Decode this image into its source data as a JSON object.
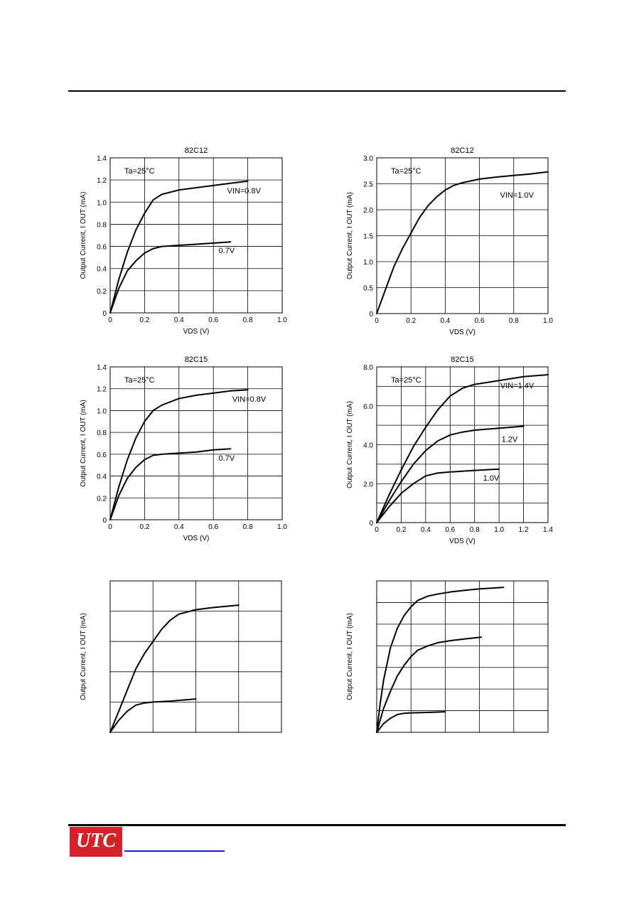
{
  "chart_data": [
    {
      "type": "line",
      "title": "82C12",
      "annotation": "Ta=25°C",
      "xlabel": "VDS (V)",
      "ylabel": "Output Current, I OUT (mA)",
      "xlim": [
        0,
        1.0
      ],
      "ylim": [
        0,
        1.4
      ],
      "xticks": [
        "0",
        "0.2",
        "0.4",
        "0.6",
        "0.8",
        "1.0"
      ],
      "yticks": [
        "0",
        "0.2",
        "0.4",
        "0.6",
        "0.8",
        "1.0",
        "1.2",
        "1.4"
      ],
      "grid": true,
      "series": [
        {
          "label": "VIN=0.8V",
          "x": [
            0,
            0.05,
            0.1,
            0.15,
            0.2,
            0.25,
            0.3,
            0.4,
            0.5,
            0.6,
            0.7,
            0.8
          ],
          "y": [
            0,
            0.3,
            0.55,
            0.75,
            0.9,
            1.02,
            1.07,
            1.11,
            1.13,
            1.15,
            1.17,
            1.19
          ]
        },
        {
          "label": "0.7V",
          "x": [
            0,
            0.05,
            0.1,
            0.15,
            0.2,
            0.25,
            0.3,
            0.4,
            0.5,
            0.6,
            0.7
          ],
          "y": [
            0,
            0.22,
            0.38,
            0.47,
            0.54,
            0.58,
            0.6,
            0.61,
            0.62,
            0.63,
            0.64
          ]
        }
      ]
    },
    {
      "type": "line",
      "title": "82C12",
      "annotation": "Ta=25°C",
      "xlabel": "VDS (V)",
      "ylabel": "Output Current, I OUT (mA)",
      "xlim": [
        0,
        1.0
      ],
      "ylim": [
        0,
        3.0
      ],
      "xticks": [
        "0",
        "0.2",
        "0.4",
        "0.6",
        "0.8",
        "1.0"
      ],
      "yticks": [
        "0",
        "0.5",
        "1.0",
        "1.5",
        "2.0",
        "2.5",
        "3.0"
      ],
      "grid": true,
      "series": [
        {
          "label": "VIN=1.0V",
          "x": [
            0,
            0.05,
            0.1,
            0.15,
            0.2,
            0.25,
            0.3,
            0.35,
            0.4,
            0.45,
            0.5,
            0.6,
            0.7,
            0.8,
            0.9,
            1.0
          ],
          "y": [
            0,
            0.45,
            0.9,
            1.25,
            1.55,
            1.85,
            2.08,
            2.25,
            2.38,
            2.47,
            2.52,
            2.59,
            2.63,
            2.66,
            2.69,
            2.73
          ]
        }
      ]
    },
    {
      "type": "line",
      "title": "82C15",
      "annotation": "Ta=25°C",
      "xlabel": "VDS (V)",
      "ylabel": "Output Current, I OUT (mA)",
      "xlim": [
        0,
        1.0
      ],
      "ylim": [
        0,
        1.4
      ],
      "xticks": [
        "0",
        "0.2",
        "0.4",
        "0.6",
        "0.8",
        "1.0"
      ],
      "yticks": [
        "0",
        "0.2",
        "0.4",
        "0.6",
        "0.8",
        "1.0",
        "1.2",
        "1.4"
      ],
      "grid": true,
      "series": [
        {
          "label": "VIN=0.8V",
          "x": [
            0,
            0.05,
            0.1,
            0.15,
            0.2,
            0.25,
            0.3,
            0.4,
            0.5,
            0.6,
            0.7,
            0.8
          ],
          "y": [
            0,
            0.3,
            0.55,
            0.75,
            0.9,
            1.0,
            1.05,
            1.11,
            1.14,
            1.16,
            1.18,
            1.19
          ]
        },
        {
          "label": "0.7V",
          "x": [
            0,
            0.05,
            0.1,
            0.15,
            0.2,
            0.25,
            0.3,
            0.4,
            0.5,
            0.6,
            0.7
          ],
          "y": [
            0,
            0.22,
            0.38,
            0.48,
            0.55,
            0.59,
            0.6,
            0.61,
            0.62,
            0.64,
            0.65
          ]
        }
      ]
    },
    {
      "type": "line",
      "title": "82C15",
      "annotation": "Ta=25°C",
      "xlabel": "VDS (V)",
      "ylabel": "Output Current, I OUT (mA)",
      "xlim": [
        0,
        1.4
      ],
      "ylim": [
        0,
        8.0
      ],
      "xticks": [
        "0",
        "0.2",
        "0.4",
        "0.6",
        "0.8",
        "1.0",
        "1.2",
        "1.4"
      ],
      "yticks": [
        "0",
        "2.0",
        "4.0",
        "6.0",
        "8.0"
      ],
      "grid": true,
      "series": [
        {
          "label": "VIN=1.4V",
          "x": [
            0,
            0.1,
            0.2,
            0.3,
            0.4,
            0.5,
            0.6,
            0.7,
            0.8,
            1.0,
            1.2,
            1.4
          ],
          "y": [
            0,
            1.4,
            2.7,
            3.9,
            4.9,
            5.8,
            6.5,
            6.9,
            7.1,
            7.3,
            7.5,
            7.6
          ]
        },
        {
          "label": "1.2V",
          "x": [
            0,
            0.1,
            0.2,
            0.3,
            0.4,
            0.5,
            0.6,
            0.7,
            0.8,
            1.0,
            1.2
          ],
          "y": [
            0,
            1.1,
            2.1,
            3.0,
            3.7,
            4.2,
            4.5,
            4.65,
            4.75,
            4.85,
            4.95
          ]
        },
        {
          "label": "1.0V",
          "x": [
            0,
            0.1,
            0.2,
            0.3,
            0.4,
            0.5,
            0.6,
            0.8,
            1.0
          ],
          "y": [
            0,
            0.8,
            1.5,
            2.0,
            2.4,
            2.55,
            2.6,
            2.68,
            2.75
          ]
        }
      ]
    },
    {
      "type": "line",
      "ylabel": "Output Current, I OUT (mA)",
      "xlim": [
        0,
        4
      ],
      "ylim": [
        0,
        5
      ],
      "grid": true,
      "series": [
        {
          "x": [
            0,
            0.2,
            0.4,
            0.6,
            0.8,
            1.0,
            1.2,
            1.4,
            1.6,
            2.0,
            2.4,
            3.0
          ],
          "y": [
            0,
            0.7,
            1.4,
            2.1,
            2.6,
            3.0,
            3.4,
            3.7,
            3.9,
            4.05,
            4.12,
            4.2
          ]
        },
        {
          "x": [
            0,
            0.2,
            0.4,
            0.6,
            0.8,
            1.0,
            1.4,
            2.0
          ],
          "y": [
            0,
            0.4,
            0.7,
            0.9,
            0.97,
            1.0,
            1.03,
            1.1
          ]
        }
      ]
    },
    {
      "type": "line",
      "ylabel": "Output Current, I OUT (mA)",
      "xlim": [
        0,
        5
      ],
      "ylim": [
        0,
        7
      ],
      "grid": true,
      "series": [
        {
          "x": [
            0,
            0.1,
            0.2,
            0.4,
            0.6,
            0.8,
            1.0,
            1.2,
            1.5,
            1.8,
            2.2,
            2.6,
            3.0,
            3.7
          ],
          "y": [
            0,
            1.3,
            2.4,
            3.9,
            4.8,
            5.4,
            5.8,
            6.1,
            6.3,
            6.4,
            6.5,
            6.57,
            6.63,
            6.7
          ]
        },
        {
          "x": [
            0,
            0.2,
            0.4,
            0.6,
            0.8,
            1.0,
            1.2,
            1.5,
            1.8,
            2.2,
            2.6,
            3.05
          ],
          "y": [
            0,
            1.1,
            1.9,
            2.6,
            3.1,
            3.5,
            3.8,
            4.0,
            4.15,
            4.25,
            4.32,
            4.4
          ]
        },
        {
          "x": [
            0,
            0.2,
            0.4,
            0.6,
            0.8,
            1.0,
            1.5,
            2.0
          ],
          "y": [
            0,
            0.4,
            0.65,
            0.82,
            0.88,
            0.9,
            0.92,
            0.95
          ]
        }
      ]
    }
  ]
}
